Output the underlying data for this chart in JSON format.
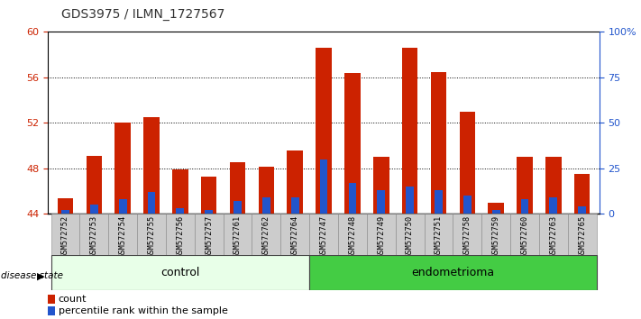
{
  "title": "GDS3975 / ILMN_1727567",
  "samples": [
    "GSM572752",
    "GSM572753",
    "GSM572754",
    "GSM572755",
    "GSM572756",
    "GSM572757",
    "GSM572761",
    "GSM572762",
    "GSM572764",
    "GSM572747",
    "GSM572748",
    "GSM572749",
    "GSM572750",
    "GSM572751",
    "GSM572758",
    "GSM572759",
    "GSM572760",
    "GSM572763",
    "GSM572765"
  ],
  "groups": [
    "control",
    "control",
    "control",
    "control",
    "control",
    "control",
    "control",
    "control",
    "control",
    "endometrioma",
    "endometrioma",
    "endometrioma",
    "endometrioma",
    "endometrioma",
    "endometrioma",
    "endometrioma",
    "endometrioma",
    "endometrioma",
    "endometrioma"
  ],
  "count_values": [
    45.4,
    49.1,
    52.0,
    52.5,
    47.9,
    47.3,
    48.5,
    48.1,
    49.6,
    58.6,
    56.4,
    49.0,
    58.6,
    56.5,
    53.0,
    45.0,
    49.0,
    49.0,
    47.5
  ],
  "percentile_values": [
    2,
    5,
    8,
    12,
    3,
    2,
    7,
    9,
    9,
    30,
    17,
    13,
    15,
    13,
    10,
    2,
    8,
    9,
    4
  ],
  "ymin": 44,
  "ymax": 60,
  "yticks": [
    44,
    48,
    52,
    56,
    60
  ],
  "right_yticks": [
    0,
    25,
    50,
    75,
    100
  ],
  "right_yticklabels": [
    "0",
    "25",
    "50",
    "75",
    "100%"
  ],
  "bar_color": "#cc2200",
  "blue_color": "#2255cc",
  "control_bg": "#e8ffe8",
  "endometrioma_bg": "#44cc44",
  "label_bg": "#cccccc",
  "bar_width": 0.55
}
